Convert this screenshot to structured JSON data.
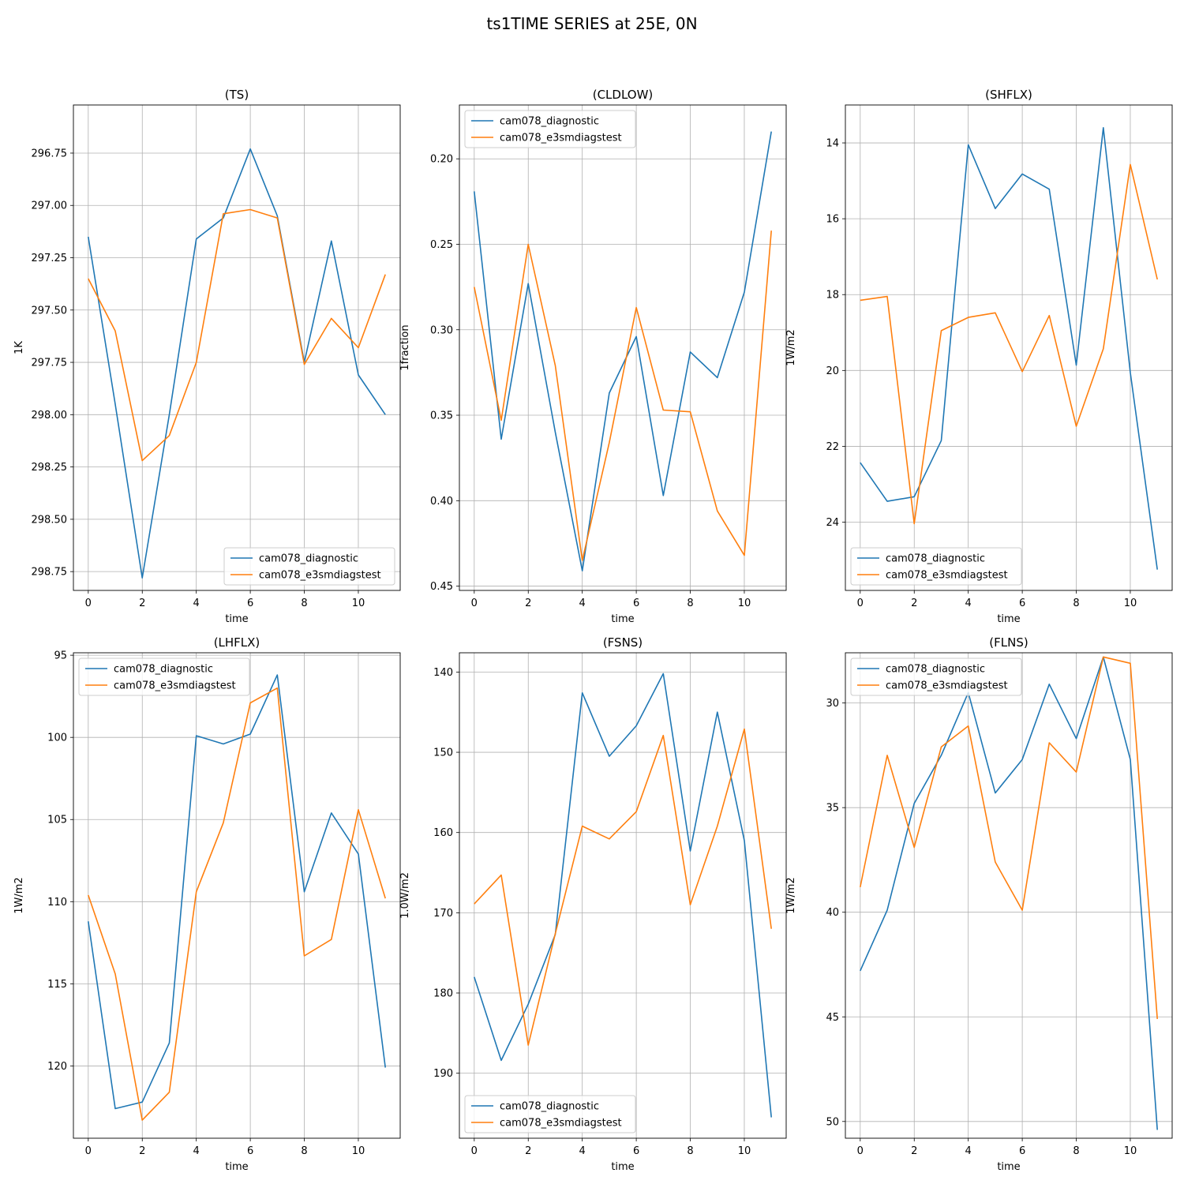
{
  "figure": {
    "title": "ts1TIME SERIES at 25E, 0N"
  },
  "colors": {
    "series1": "#1f77b4",
    "series2": "#ff7f0e",
    "grid": "#b0b0b0",
    "axis": "#000000"
  },
  "chart_data": [
    {
      "type": "line",
      "title": "(TS)",
      "xlabel": "time",
      "ylabel": "1K",
      "y_inverted": true,
      "grid": true,
      "legend_position": "lower-right",
      "xlim": [
        -0.55,
        11.55
      ],
      "ylim": [
        298.84,
        296.52
      ],
      "x_ticks": [
        0,
        2,
        4,
        6,
        8,
        10
      ],
      "y_ticks": [
        296.75,
        297.0,
        297.25,
        297.5,
        297.75,
        298.0,
        298.25,
        298.5,
        298.75
      ],
      "y_tick_labels": [
        "296.75",
        "297.00",
        "297.25",
        "297.50",
        "297.75",
        "298.00",
        "298.25",
        "298.50",
        "298.75"
      ],
      "x": [
        0,
        1,
        2,
        3,
        4,
        5,
        6,
        7,
        8,
        9,
        10,
        11
      ],
      "series": [
        {
          "name": "cam078_diagnostic",
          "values": [
            297.15,
            297.95,
            298.78,
            298.0,
            297.16,
            297.06,
            296.73,
            297.05,
            297.75,
            297.17,
            297.81,
            298.0
          ]
        },
        {
          "name": "cam078_e3smdiagstest",
          "values": [
            297.35,
            297.6,
            298.22,
            298.1,
            297.75,
            297.04,
            297.02,
            297.06,
            297.76,
            297.54,
            297.68,
            297.33
          ]
        }
      ]
    },
    {
      "type": "line",
      "title": "(CLDLOW)",
      "xlabel": "time",
      "ylabel": "1fraction",
      "y_inverted": true,
      "grid": true,
      "legend_position": "upper-left",
      "xlim": [
        -0.55,
        11.55
      ],
      "ylim": [
        0.4525,
        0.1685
      ],
      "x_ticks": [
        0,
        2,
        4,
        6,
        8,
        10
      ],
      "y_ticks": [
        0.2,
        0.25,
        0.3,
        0.35,
        0.4,
        0.45
      ],
      "y_tick_labels": [
        "0.20",
        "0.25",
        "0.30",
        "0.35",
        "0.40",
        "0.45"
      ],
      "x": [
        0,
        1,
        2,
        3,
        4,
        5,
        6,
        7,
        8,
        9,
        10,
        11
      ],
      "series": [
        {
          "name": "cam078_diagnostic",
          "values": [
            0.219,
            0.364,
            0.273,
            0.36,
            0.441,
            0.337,
            0.304,
            0.397,
            0.313,
            0.328,
            0.278,
            0.184
          ]
        },
        {
          "name": "cam078_e3smdiagstest",
          "values": [
            0.275,
            0.353,
            0.25,
            0.321,
            0.435,
            0.366,
            0.287,
            0.347,
            0.348,
            0.406,
            0.432,
            0.242
          ]
        }
      ]
    },
    {
      "type": "line",
      "title": "(SHFLX)",
      "xlabel": "time",
      "ylabel": "1W/m2",
      "y_inverted": true,
      "grid": true,
      "legend_position": "lower-left",
      "xlim": [
        -0.55,
        11.55
      ],
      "ylim": [
        25.8,
        13.0
      ],
      "x_ticks": [
        0,
        2,
        4,
        6,
        8,
        10
      ],
      "y_ticks": [
        14,
        16,
        18,
        20,
        22,
        24
      ],
      "y_tick_labels": [
        "14",
        "16",
        "18",
        "20",
        "22",
        "24"
      ],
      "x": [
        0,
        1,
        2,
        3,
        4,
        5,
        6,
        7,
        8,
        9,
        10,
        11
      ],
      "series": [
        {
          "name": "cam078_diagnostic",
          "values": [
            22.43,
            23.45,
            23.33,
            21.85,
            14.05,
            15.73,
            14.82,
            15.22,
            19.86,
            13.6,
            20.06,
            25.25
          ]
        },
        {
          "name": "cam078_e3smdiagstest",
          "values": [
            18.15,
            18.05,
            24.04,
            18.95,
            18.6,
            18.48,
            20.03,
            18.55,
            21.47,
            19.43,
            14.57,
            17.6
          ]
        }
      ]
    },
    {
      "type": "line",
      "title": "(LHFLX)",
      "xlabel": "time",
      "ylabel": "1W/m2",
      "y_inverted": true,
      "grid": true,
      "legend_position": "upper-left",
      "xlim": [
        -0.55,
        11.55
      ],
      "ylim": [
        124.4,
        94.85
      ],
      "x_ticks": [
        0,
        2,
        4,
        6,
        8,
        10
      ],
      "y_ticks": [
        95,
        100,
        105,
        110,
        115,
        120
      ],
      "y_tick_labels": [
        "95",
        "100",
        "105",
        "110",
        "115",
        "120"
      ],
      "x": [
        0,
        1,
        2,
        3,
        4,
        5,
        6,
        7,
        8,
        9,
        10,
        11
      ],
      "series": [
        {
          "name": "cam078_diagnostic",
          "values": [
            111.2,
            122.6,
            122.2,
            118.6,
            99.9,
            100.4,
            99.8,
            96.2,
            109.4,
            104.6,
            107.1,
            120.1
          ]
        },
        {
          "name": "cam078_e3smdiagstest",
          "values": [
            109.6,
            114.4,
            123.3,
            121.6,
            109.4,
            105.2,
            97.9,
            97.0,
            113.3,
            112.3,
            104.4,
            109.8
          ]
        }
      ]
    },
    {
      "type": "line",
      "title": "(FSNS)",
      "xlabel": "time",
      "ylabel": "1.0W/m2",
      "y_inverted": true,
      "grid": true,
      "legend_position": "lower-left",
      "xlim": [
        -0.55,
        11.55
      ],
      "ylim": [
        198.1,
        137.6
      ],
      "x_ticks": [
        0,
        2,
        4,
        6,
        8,
        10
      ],
      "y_ticks": [
        140,
        150,
        160,
        170,
        180,
        190
      ],
      "y_tick_labels": [
        "140",
        "150",
        "160",
        "170",
        "180",
        "190"
      ],
      "x": [
        0,
        1,
        2,
        3,
        4,
        5,
        6,
        7,
        8,
        9,
        10,
        11
      ],
      "series": [
        {
          "name": "cam078_diagnostic",
          "values": [
            178.0,
            188.4,
            181.4,
            172.7,
            142.6,
            150.5,
            146.7,
            140.2,
            162.3,
            145.0,
            161.0,
            195.5
          ]
        },
        {
          "name": "cam078_e3smdiagstest",
          "values": [
            168.9,
            165.3,
            186.5,
            172.6,
            159.2,
            160.8,
            157.4,
            147.9,
            169.0,
            159.2,
            147.1,
            172.0
          ]
        }
      ]
    },
    {
      "type": "line",
      "title": "(FLNS)",
      "xlabel": "time",
      "ylabel": "1W/m2",
      "y_inverted": true,
      "grid": true,
      "legend_position": "upper-left",
      "xlim": [
        -0.55,
        11.55
      ],
      "ylim": [
        50.8,
        27.6
      ],
      "x_ticks": [
        0,
        2,
        4,
        6,
        8,
        10
      ],
      "y_ticks": [
        30,
        35,
        40,
        45,
        50
      ],
      "y_tick_labels": [
        "30",
        "35",
        "40",
        "45",
        "50"
      ],
      "x": [
        0,
        1,
        2,
        3,
        4,
        5,
        6,
        7,
        8,
        9,
        10,
        11
      ],
      "series": [
        {
          "name": "cam078_diagnostic",
          "values": [
            42.8,
            39.9,
            34.8,
            32.5,
            29.5,
            34.3,
            32.7,
            29.1,
            31.7,
            27.8,
            32.7,
            50.4
          ]
        },
        {
          "name": "cam078_e3smdiagstest",
          "values": [
            38.8,
            32.5,
            36.9,
            32.1,
            31.1,
            37.6,
            39.9,
            31.9,
            33.3,
            27.8,
            28.1,
            45.1
          ]
        }
      ]
    }
  ]
}
